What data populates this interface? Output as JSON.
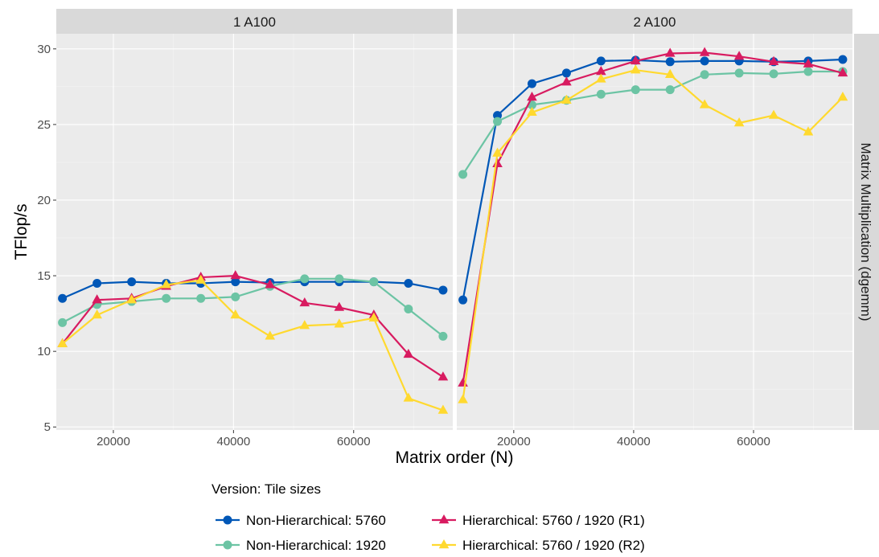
{
  "chart_data": {
    "type": "line",
    "xlabel": "Matrix order (N)",
    "ylabel": "TFlop/s",
    "facet_row_label": "Matrix Multiplication (dgemm)",
    "xlim": [
      10500,
      76500
    ],
    "ylim": [
      4.8,
      31
    ],
    "x_ticks": [
      20000,
      40000,
      60000
    ],
    "x_tick_labels": [
      "20000",
      "40000",
      "60000"
    ],
    "y_ticks": [
      5,
      10,
      15,
      20,
      25,
      30
    ],
    "y_tick_labels": [
      "5",
      "10",
      "15",
      "20",
      "25",
      "30"
    ],
    "grid": true,
    "legend": {
      "title": "Version: Tile sizes",
      "position": "bottom",
      "entries": [
        {
          "label": "Non-Hierarchical: 5760",
          "color": "#0057b7",
          "shape": "circle"
        },
        {
          "label": "Non-Hierarchical: 1920",
          "color": "#6cc4a4",
          "shape": "circle"
        },
        {
          "label": "Hierarchical: 5760 / 1920 (R1)",
          "color": "#d81b60",
          "shape": "triangle"
        },
        {
          "label": "Hierarchical: 5760 / 1920 (R2)",
          "color": "#ffd92f",
          "shape": "triangle"
        }
      ]
    },
    "panels": [
      {
        "title": "1 A100",
        "series": [
          {
            "name": "Non-Hierarchical: 5760",
            "x": [
              11520,
              17280,
              23040,
              28800,
              34560,
              40320,
              46080,
              51840,
              57600,
              63360,
              69120,
              74880
            ],
            "y": [
              13.5,
              14.5,
              14.6,
              14.5,
              14.5,
              14.6,
              14.55,
              14.6,
              14.6,
              14.6,
              14.5,
              14.05
            ]
          },
          {
            "name": "Non-Hierarchical: 1920",
            "x": [
              11520,
              17280,
              23040,
              28800,
              34560,
              40320,
              46080,
              51840,
              57600,
              63360,
              69120,
              74880
            ],
            "y": [
              11.9,
              13.1,
              13.3,
              13.5,
              13.5,
              13.6,
              14.3,
              14.8,
              14.8,
              14.6,
              12.8,
              11.0
            ]
          },
          {
            "name": "Hierarchical: 5760 / 1920 (R1)",
            "x": [
              11520,
              17280,
              23040,
              28800,
              34560,
              40320,
              46080,
              51840,
              57600,
              63360,
              69120,
              74880
            ],
            "y": [
              10.5,
              13.4,
              13.5,
              14.3,
              14.9,
              15.0,
              14.4,
              13.2,
              12.9,
              12.4,
              9.8,
              8.3
            ]
          },
          {
            "name": "Hierarchical: 5760 / 1920 (R2)",
            "x": [
              11520,
              17280,
              23040,
              28800,
              34560,
              40320,
              46080,
              51840,
              57600,
              63360,
              69120,
              74880
            ],
            "y": [
              10.5,
              12.4,
              13.4,
              14.4,
              14.7,
              12.4,
              11.0,
              11.7,
              11.8,
              12.2,
              6.9,
              6.1
            ]
          }
        ]
      },
      {
        "title": "2 A100",
        "series": [
          {
            "name": "Non-Hierarchical: 5760",
            "x": [
              11520,
              17280,
              23040,
              28800,
              34560,
              40320,
              46080,
              51840,
              57600,
              63360,
              69120,
              74880
            ],
            "y": [
              13.4,
              25.6,
              27.7,
              28.4,
              29.2,
              29.25,
              29.15,
              29.2,
              29.2,
              29.15,
              29.2,
              29.3
            ]
          },
          {
            "name": "Non-Hierarchical: 1920",
            "x": [
              11520,
              17280,
              23040,
              28800,
              34560,
              40320,
              46080,
              51840,
              57600,
              63360,
              69120,
              74880
            ],
            "y": [
              21.7,
              25.2,
              26.3,
              26.6,
              27.0,
              27.3,
              27.3,
              28.3,
              28.4,
              28.35,
              28.5,
              28.5
            ]
          },
          {
            "name": "Hierarchical: 5760 / 1920 (R1)",
            "x": [
              11520,
              17280,
              23040,
              28800,
              34560,
              40320,
              46080,
              51840,
              57600,
              63360,
              69120,
              74880
            ],
            "y": [
              7.9,
              22.4,
              26.8,
              27.8,
              28.5,
              29.2,
              29.7,
              29.75,
              29.5,
              29.15,
              29.0,
              28.4
            ]
          },
          {
            "name": "Hierarchical: 5760 / 1920 (R2)",
            "x": [
              11520,
              17280,
              23040,
              28800,
              34560,
              40320,
              46080,
              51840,
              57600,
              63360,
              69120,
              74880
            ],
            "y": [
              6.8,
              23.1,
              25.8,
              26.6,
              28.0,
              28.6,
              28.3,
              26.3,
              25.1,
              25.6,
              24.5,
              26.8
            ]
          }
        ]
      }
    ]
  }
}
